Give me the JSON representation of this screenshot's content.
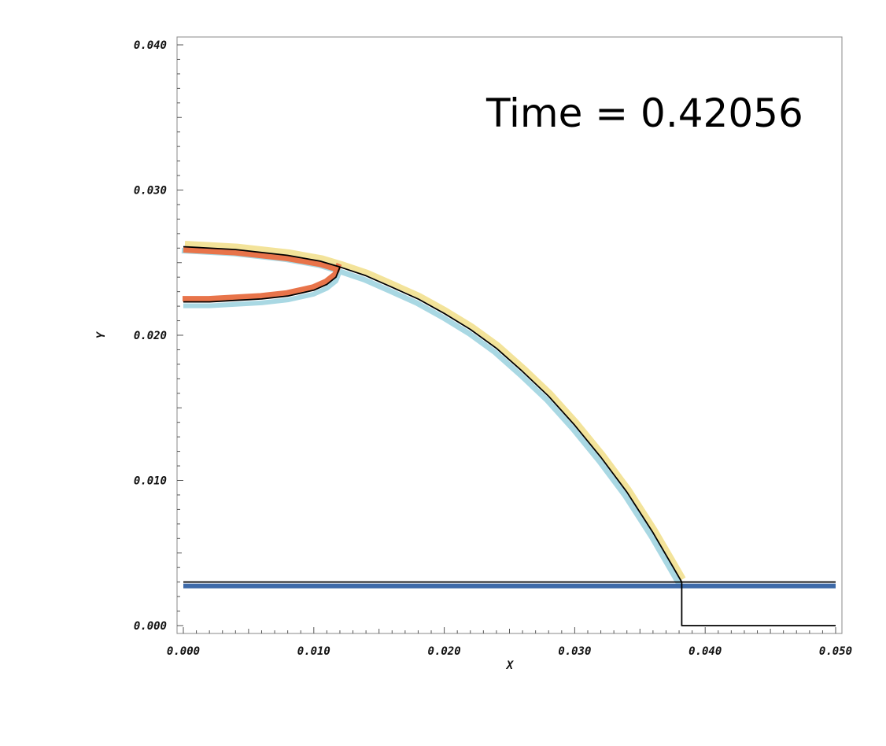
{
  "chart_data": {
    "type": "line",
    "annotation": "Time = 0.42056",
    "xlabel": "X",
    "ylabel": "Y",
    "xlim": [
      0.0,
      0.05
    ],
    "ylim": [
      0.0,
      0.04
    ],
    "x_ticks": [
      "0.000",
      "0.010",
      "0.020",
      "0.030",
      "0.040",
      "0.050"
    ],
    "y_ticks": [
      "0.000",
      "0.010",
      "0.020",
      "0.030",
      "0.040"
    ],
    "x_tick_values": [
      0.0,
      0.01,
      0.02,
      0.03,
      0.04,
      0.05
    ],
    "y_tick_values": [
      0.0,
      0.01,
      0.02,
      0.03,
      0.04
    ],
    "grid": false,
    "colors": {
      "upper_band": "#f3e39a",
      "lower_band": "#a9d8e3",
      "inner_band": "#e8744a",
      "curve": "#000000",
      "wall": "#3e6aa8"
    },
    "series": [
      {
        "id": "front_main",
        "x": [
          0.0,
          0.004,
          0.008,
          0.0105,
          0.012,
          0.014,
          0.016,
          0.018,
          0.02,
          0.022,
          0.024,
          0.026,
          0.028,
          0.03,
          0.032,
          0.034,
          0.036,
          0.0375,
          0.0382
        ],
        "y": [
          0.0261,
          0.0259,
          0.0255,
          0.0251,
          0.0247,
          0.0241,
          0.0233,
          0.0225,
          0.0215,
          0.0204,
          0.0191,
          0.0175,
          0.0158,
          0.0138,
          0.0116,
          0.0092,
          0.0064,
          0.0041,
          0.003
        ]
      },
      {
        "id": "front_lower_branch",
        "x": [
          0.0,
          0.002,
          0.004,
          0.006,
          0.008,
          0.01,
          0.011,
          0.0117,
          0.012
        ],
        "y": [
          0.0223,
          0.0223,
          0.0224,
          0.0225,
          0.0227,
          0.0231,
          0.0235,
          0.024,
          0.0247
        ]
      },
      {
        "id": "wall_line",
        "x": [
          0.0,
          0.05
        ],
        "y": [
          0.003,
          0.003
        ]
      },
      {
        "id": "step_line",
        "x": [
          0.0382,
          0.0382,
          0.05
        ],
        "y": [
          0.003,
          0.0,
          0.0
        ]
      }
    ]
  }
}
